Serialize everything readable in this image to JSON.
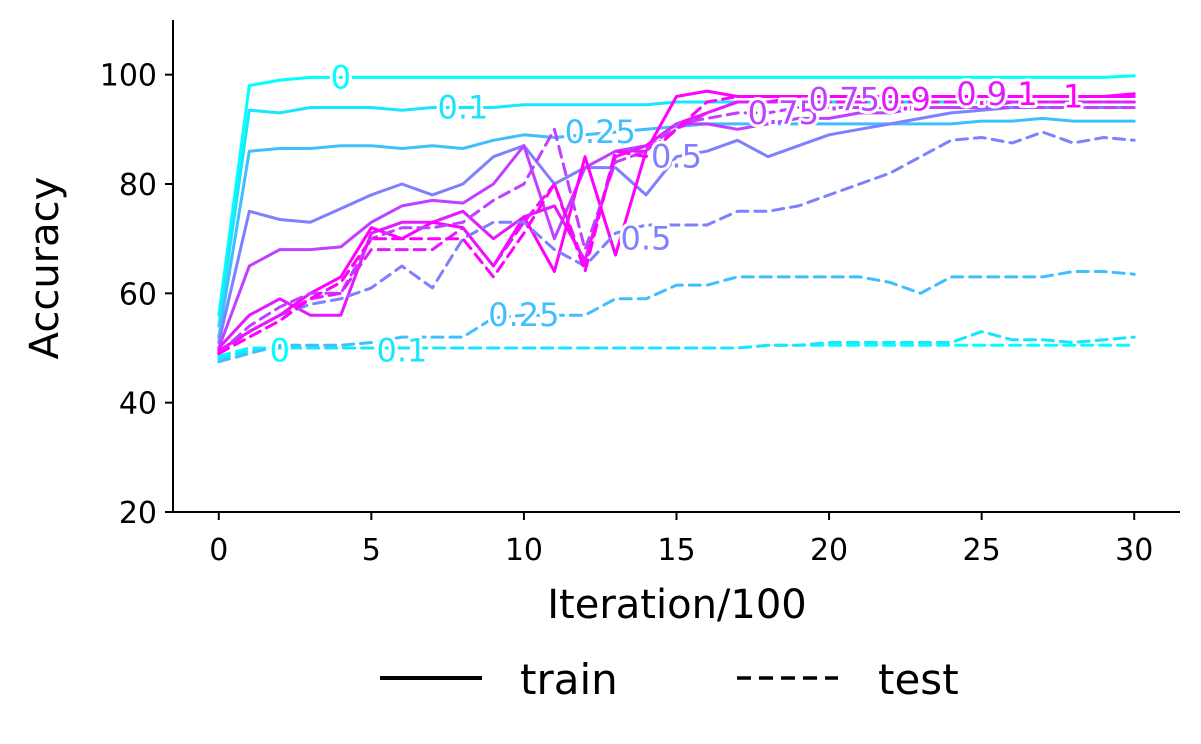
{
  "chart_data": {
    "type": "line",
    "xlabel": "Iteration/100",
    "ylabel": "Accuracy",
    "xlim": [
      -1.5,
      31.5
    ],
    "ylim": [
      20,
      110
    ],
    "xticks": [
      0,
      5,
      10,
      15,
      20,
      25,
      30
    ],
    "yticks": [
      20,
      40,
      60,
      80,
      100
    ],
    "grid": false,
    "legend": {
      "placement": "bottom",
      "entries": [
        {
          "label": "train",
          "style": "solid"
        },
        {
          "label": "test",
          "style": "dashed"
        }
      ]
    },
    "x": [
      0,
      1,
      2,
      3,
      4,
      5,
      6,
      7,
      8,
      9,
      10,
      11,
      12,
      13,
      14,
      15,
      16,
      17,
      18,
      19,
      20,
      21,
      22,
      23,
      24,
      25,
      26,
      27,
      28,
      29,
      30
    ],
    "series": [
      {
        "level_label": "0",
        "split": "train",
        "color": "#00ffff",
        "values": [
          56,
          98,
          99,
          99.5,
          99.5,
          99.5,
          99.5,
          99.5,
          99.5,
          99.5,
          99.5,
          99.5,
          99.5,
          99.5,
          99.5,
          99.5,
          99.5,
          99.5,
          99.5,
          99.5,
          99.5,
          99.5,
          99.5,
          99.5,
          99.5,
          99.5,
          99.5,
          99.5,
          99.5,
          99.5,
          99.8
        ]
      },
      {
        "level_label": "0.1",
        "split": "train",
        "color": "#1ae5ff",
        "values": [
          54,
          93.5,
          93,
          94,
          94,
          94,
          93.5,
          94,
          94,
          94,
          94.5,
          94.5,
          94.5,
          94.5,
          94.5,
          95,
          95,
          95,
          95,
          95,
          95,
          95,
          95,
          95,
          95,
          95,
          95,
          95,
          95,
          95,
          95
        ]
      },
      {
        "level_label": "0.25",
        "split": "train",
        "color": "#40bfff",
        "values": [
          52,
          86,
          86.5,
          86.5,
          87,
          87,
          86.5,
          87,
          86.5,
          88,
          89,
          88.5,
          89,
          89.5,
          90,
          90.5,
          91,
          91,
          91,
          91,
          91,
          91,
          91,
          91,
          91,
          91.5,
          91.5,
          92,
          91.5,
          91.5,
          91.5
        ]
      },
      {
        "level_label": "0.5",
        "split": "train",
        "color": "#7f80ff",
        "values": [
          51,
          75,
          73.5,
          73,
          75.5,
          78,
          80,
          78,
          80,
          85,
          87,
          80,
          83,
          83,
          78,
          85,
          86,
          88,
          85,
          87,
          89,
          90,
          91,
          92,
          93,
          93.5,
          94,
          94,
          94,
          94,
          94
        ]
      },
      {
        "level_label": "0.75",
        "split": "train",
        "color": "#bf40ff",
        "values": [
          50,
          65,
          68,
          68,
          68.5,
          73,
          76,
          77,
          76.5,
          80,
          87,
          70,
          83,
          86,
          87,
          91,
          91,
          90,
          91,
          92,
          92,
          93,
          93,
          94,
          94,
          94,
          95,
          95,
          95,
          95,
          95
        ]
      },
      {
        "level_label": "0.9",
        "split": "train",
        "color": "#e519ff",
        "values": [
          50,
          56,
          59,
          56,
          56,
          71,
          73,
          73,
          75,
          70,
          74,
          76,
          66,
          85,
          87,
          91,
          93,
          95,
          95,
          96,
          96,
          96,
          96,
          96,
          96,
          96,
          96,
          96,
          96,
          96,
          96
        ]
      },
      {
        "level_label": "1",
        "split": "train",
        "color": "#ff00ff",
        "values": [
          49.5,
          53,
          56,
          60,
          63,
          72,
          70,
          73,
          72,
          65,
          74,
          64,
          85,
          67,
          86,
          96,
          97,
          96,
          96,
          96,
          96,
          96,
          96,
          96,
          96,
          96,
          96,
          96,
          96,
          96,
          96.5
        ]
      },
      {
        "level_label": "0",
        "split": "test",
        "color": "#00ffff",
        "values": [
          48.5,
          50,
          50,
          50,
          50,
          50,
          50,
          50,
          50,
          50,
          50,
          50,
          50,
          50,
          50,
          50,
          50,
          50,
          50.5,
          50.5,
          50.5,
          50.5,
          50.5,
          50.5,
          50.5,
          50.5,
          50.5,
          50.5,
          50.5,
          50.5,
          50.5
        ]
      },
      {
        "level_label": "0.1",
        "split": "test",
        "color": "#1ae5ff",
        "values": [
          48,
          49.5,
          50,
          50,
          50,
          50,
          50,
          50,
          50,
          50,
          50,
          50,
          50,
          50,
          50,
          50,
          50,
          50,
          50.5,
          50.5,
          51,
          51,
          51,
          51,
          51,
          53,
          51.5,
          51.5,
          51,
          51.5,
          52
        ]
      },
      {
        "level_label": "0.25",
        "split": "test",
        "color": "#40bfff",
        "values": [
          47.5,
          49,
          50.5,
          50.5,
          50.5,
          51,
          52,
          52,
          52,
          55.5,
          56,
          56,
          56,
          59,
          59,
          61.5,
          61.5,
          63,
          63,
          63,
          63,
          63,
          62,
          60,
          63,
          63,
          63,
          63,
          64,
          64,
          63.5
        ]
      },
      {
        "level_label": "0.5",
        "split": "test",
        "color": "#7f80ff",
        "values": [
          49,
          53,
          56,
          58,
          59,
          61,
          65,
          61,
          70,
          73,
          73,
          68,
          65,
          71,
          72.5,
          72.5,
          72.5,
          75,
          75,
          76,
          78,
          80,
          82,
          85,
          88,
          88.5,
          87.5,
          89.5,
          87.5,
          88.5,
          88
        ]
      },
      {
        "level_label": "0.75",
        "split": "test",
        "color": "#bf40ff",
        "values": [
          49,
          54,
          57.5,
          60,
          60,
          70,
          72,
          72,
          73,
          77,
          80,
          90,
          68,
          84,
          86,
          91,
          92,
          93,
          93,
          94,
          94,
          94,
          94,
          94,
          94,
          94,
          94,
          94,
          94,
          94,
          94
        ]
      },
      {
        "level_label": "0.9",
        "split": "test",
        "color": "#e519ff",
        "values": [
          49,
          53,
          56,
          59,
          60,
          68,
          68,
          68,
          72,
          65,
          73,
          80,
          65,
          86,
          86,
          90,
          93,
          95,
          95,
          95,
          95,
          95,
          95,
          95,
          95,
          95,
          95,
          95,
          95,
          95,
          95
        ]
      },
      {
        "level_label": "1",
        "split": "test",
        "color": "#ff00ff",
        "values": [
          49,
          52,
          55,
          59,
          62,
          70,
          70,
          70,
          70,
          63,
          71,
          80,
          64,
          86,
          85,
          90,
          95,
          96,
          96,
          96,
          96,
          96,
          96,
          96,
          96,
          96,
          96,
          96,
          96,
          96,
          96
        ]
      }
    ],
    "inline_labels": [
      {
        "text": "0",
        "x": 4,
        "y": 99.5,
        "color": "#00ffff"
      },
      {
        "text": "0.1",
        "x": 8,
        "y": 94,
        "color": "#1ae5ff"
      },
      {
        "text": "0.25",
        "x": 12.5,
        "y": 89.5,
        "color": "#40bfff"
      },
      {
        "text": "0.5",
        "x": 15,
        "y": 85,
        "color": "#7f80ff"
      },
      {
        "text": "0.75",
        "x": 18.5,
        "y": 93,
        "color": "#bf40ff"
      },
      {
        "text": "0.75",
        "x": 20.5,
        "y": 95.5,
        "color": "#bf40ff"
      },
      {
        "text": "0.9",
        "x": 22.5,
        "y": 95.5,
        "color": "#e519ff"
      },
      {
        "text": "0.9",
        "x": 25,
        "y": 96.5,
        "color": "#e519ff"
      },
      {
        "text": "1",
        "x": 26.5,
        "y": 96.5,
        "color": "#ff00ff"
      },
      {
        "text": "1",
        "x": 28,
        "y": 96,
        "color": "#ff00ff"
      },
      {
        "text": "0",
        "x": 2,
        "y": 49.5,
        "color": "#00ffff"
      },
      {
        "text": "0.1",
        "x": 6,
        "y": 49.5,
        "color": "#1ae5ff"
      },
      {
        "text": "0.25",
        "x": 10,
        "y": 56,
        "color": "#40bfff"
      },
      {
        "text": "0.5",
        "x": 14,
        "y": 70,
        "color": "#7f80ff"
      }
    ]
  }
}
